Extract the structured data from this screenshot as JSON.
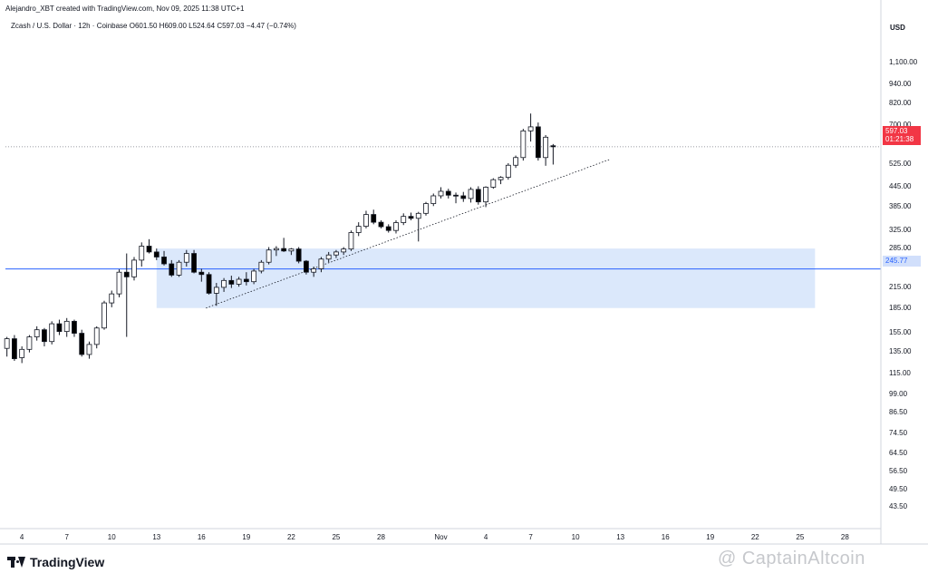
{
  "header": {
    "author_line": "Alejandro_XBT created with TradingView.com, Nov 09, 2025 11:38 UTC+1"
  },
  "legend": {
    "symbol": "Zcash / U.S. Dollar · 12h · Coinbase",
    "open": "O601.50",
    "high": "H609.00",
    "low": "L524.64",
    "close": "C597.03",
    "change": "−4.47 (−0.74%)"
  },
  "footer": {
    "brand": "TradingView",
    "watermark": "@ CaptainAltcoin"
  },
  "colors": {
    "candle_up_fill": "#ffffff",
    "candle_down_fill": "#000000",
    "candle_border": "#131722",
    "zone_fill": "#dbe8fb",
    "level_line": "#2962ff",
    "trendline": "#131722",
    "last_price_line": "#787b86",
    "last_price_tag": "#f23645"
  },
  "chart_data": {
    "type": "candlestick",
    "title": "",
    "y_axis": {
      "currency": "USD",
      "scale": "log",
      "ticks": [
        "1,100.00",
        "940.00",
        "820.00",
        "700.00",
        "525.00",
        "445.00",
        "385.00",
        "325.00",
        "285.00",
        "215.00",
        "185.00",
        "155.00",
        "135.00",
        "115.00",
        "99.00",
        "86.50",
        "74.50",
        "64.50",
        "56.50",
        "49.50",
        "43.50"
      ],
      "tick_values": [
        1100,
        940,
        820,
        700,
        525,
        445,
        385,
        325,
        285,
        215,
        185,
        155,
        135,
        115,
        99,
        86.5,
        74.5,
        64.5,
        56.5,
        49.5,
        43.5
      ],
      "range": [
        38,
        1350
      ]
    },
    "x_axis": {
      "ticks": [
        "4",
        "7",
        "10",
        "13",
        "16",
        "19",
        "22",
        "25",
        "28",
        "Nov",
        "4",
        "7",
        "10",
        "13",
        "16",
        "19",
        "22",
        "25",
        "28"
      ],
      "tick_days": [
        4,
        7,
        10,
        13,
        16,
        19,
        22,
        25,
        28,
        32,
        35,
        38,
        41,
        44,
        47,
        50,
        53,
        56,
        59
      ],
      "day_unit": "days from Oct 1, 2025",
      "range": [
        2.9,
        61.4
      ]
    },
    "last_price": {
      "value": 597.03,
      "label": "597.03",
      "countdown": "01:21:38"
    },
    "horizontal_level": {
      "value": 245.77,
      "label": "245.77"
    },
    "demand_zone": {
      "from_day": 13,
      "to_day": 57,
      "low": 185,
      "high": 285
    },
    "trendline": {
      "from": {
        "day": 16.3,
        "price": 185
      },
      "to": {
        "day": 43.3,
        "price": 545
      }
    },
    "candles": [
      {
        "day": 3.0,
        "o": 138,
        "h": 150,
        "l": 130,
        "c": 148
      },
      {
        "day": 3.5,
        "o": 148,
        "h": 152,
        "l": 126,
        "c": 128
      },
      {
        "day": 4.0,
        "o": 129,
        "h": 140,
        "l": 124,
        "c": 137
      },
      {
        "day": 4.5,
        "o": 137,
        "h": 152,
        "l": 134,
        "c": 150
      },
      {
        "day": 5.0,
        "o": 150,
        "h": 162,
        "l": 146,
        "c": 158
      },
      {
        "day": 5.5,
        "o": 158,
        "h": 160,
        "l": 140,
        "c": 145
      },
      {
        "day": 6.0,
        "o": 145,
        "h": 168,
        "l": 142,
        "c": 165
      },
      {
        "day": 6.5,
        "o": 165,
        "h": 170,
        "l": 152,
        "c": 156
      },
      {
        "day": 7.0,
        "o": 156,
        "h": 172,
        "l": 150,
        "c": 168
      },
      {
        "day": 7.5,
        "o": 168,
        "h": 170,
        "l": 150,
        "c": 154
      },
      {
        "day": 8.0,
        "o": 154,
        "h": 158,
        "l": 130,
        "c": 132
      },
      {
        "day": 8.5,
        "o": 132,
        "h": 145,
        "l": 128,
        "c": 142
      },
      {
        "day": 9.0,
        "o": 142,
        "h": 162,
        "l": 138,
        "c": 160
      },
      {
        "day": 9.5,
        "o": 160,
        "h": 195,
        "l": 158,
        "c": 192
      },
      {
        "day": 10.0,
        "o": 192,
        "h": 210,
        "l": 186,
        "c": 205
      },
      {
        "day": 10.5,
        "o": 205,
        "h": 245,
        "l": 200,
        "c": 240
      },
      {
        "day": 11.0,
        "o": 240,
        "h": 275,
        "l": 150,
        "c": 232
      },
      {
        "day": 11.5,
        "o": 232,
        "h": 268,
        "l": 226,
        "c": 262
      },
      {
        "day": 12.0,
        "o": 262,
        "h": 298,
        "l": 250,
        "c": 290
      },
      {
        "day": 12.5,
        "o": 290,
        "h": 305,
        "l": 275,
        "c": 278
      },
      {
        "day": 13.0,
        "o": 278,
        "h": 285,
        "l": 262,
        "c": 268
      },
      {
        "day": 13.5,
        "o": 268,
        "h": 280,
        "l": 252,
        "c": 255
      },
      {
        "day": 14.0,
        "o": 255,
        "h": 262,
        "l": 232,
        "c": 235
      },
      {
        "day": 14.5,
        "o": 235,
        "h": 262,
        "l": 232,
        "c": 258
      },
      {
        "day": 15.0,
        "o": 258,
        "h": 282,
        "l": 250,
        "c": 275
      },
      {
        "day": 15.5,
        "o": 275,
        "h": 282,
        "l": 238,
        "c": 240
      },
      {
        "day": 16.0,
        "o": 240,
        "h": 246,
        "l": 224,
        "c": 236
      },
      {
        "day": 16.5,
        "o": 236,
        "h": 240,
        "l": 204,
        "c": 206
      },
      {
        "day": 17.0,
        "o": 206,
        "h": 222,
        "l": 188,
        "c": 215
      },
      {
        "day": 17.5,
        "o": 215,
        "h": 230,
        "l": 208,
        "c": 226
      },
      {
        "day": 18.0,
        "o": 226,
        "h": 234,
        "l": 214,
        "c": 220
      },
      {
        "day": 18.5,
        "o": 220,
        "h": 232,
        "l": 216,
        "c": 228
      },
      {
        "day": 19.0,
        "o": 228,
        "h": 240,
        "l": 218,
        "c": 224
      },
      {
        "day": 19.5,
        "o": 224,
        "h": 246,
        "l": 220,
        "c": 242
      },
      {
        "day": 20.0,
        "o": 242,
        "h": 262,
        "l": 238,
        "c": 258
      },
      {
        "day": 20.5,
        "o": 258,
        "h": 288,
        "l": 254,
        "c": 282
      },
      {
        "day": 21.0,
        "o": 282,
        "h": 290,
        "l": 270,
        "c": 285
      },
      {
        "day": 21.5,
        "o": 285,
        "h": 308,
        "l": 278,
        "c": 280
      },
      {
        "day": 22.0,
        "o": 280,
        "h": 286,
        "l": 272,
        "c": 284
      },
      {
        "day": 22.5,
        "o": 284,
        "h": 288,
        "l": 256,
        "c": 260
      },
      {
        "day": 23.0,
        "o": 260,
        "h": 262,
        "l": 236,
        "c": 240
      },
      {
        "day": 23.5,
        "o": 240,
        "h": 250,
        "l": 232,
        "c": 246
      },
      {
        "day": 24.0,
        "o": 246,
        "h": 268,
        "l": 240,
        "c": 264
      },
      {
        "day": 24.5,
        "o": 264,
        "h": 278,
        "l": 258,
        "c": 272
      },
      {
        "day": 25.0,
        "o": 272,
        "h": 282,
        "l": 266,
        "c": 278
      },
      {
        "day": 25.5,
        "o": 278,
        "h": 288,
        "l": 272,
        "c": 284
      },
      {
        "day": 26.0,
        "o": 284,
        "h": 325,
        "l": 280,
        "c": 320
      },
      {
        "day": 26.5,
        "o": 320,
        "h": 345,
        "l": 312,
        "c": 335
      },
      {
        "day": 27.0,
        "o": 335,
        "h": 375,
        "l": 330,
        "c": 365
      },
      {
        "day": 27.5,
        "o": 365,
        "h": 378,
        "l": 340,
        "c": 345
      },
      {
        "day": 28.0,
        "o": 345,
        "h": 350,
        "l": 330,
        "c": 334
      },
      {
        "day": 28.5,
        "o": 334,
        "h": 340,
        "l": 320,
        "c": 325
      },
      {
        "day": 29.0,
        "o": 325,
        "h": 350,
        "l": 318,
        "c": 344
      },
      {
        "day": 29.5,
        "o": 344,
        "h": 368,
        "l": 338,
        "c": 360
      },
      {
        "day": 30.0,
        "o": 360,
        "h": 370,
        "l": 350,
        "c": 355
      },
      {
        "day": 30.5,
        "o": 355,
        "h": 372,
        "l": 300,
        "c": 368
      },
      {
        "day": 31.0,
        "o": 368,
        "h": 400,
        "l": 362,
        "c": 395
      },
      {
        "day": 31.5,
        "o": 395,
        "h": 425,
        "l": 388,
        "c": 418
      },
      {
        "day": 32.0,
        "o": 418,
        "h": 445,
        "l": 410,
        "c": 432
      },
      {
        "day": 32.5,
        "o": 432,
        "h": 440,
        "l": 410,
        "c": 420
      },
      {
        "day": 33.0,
        "o": 420,
        "h": 428,
        "l": 396,
        "c": 418
      },
      {
        "day": 33.5,
        "o": 418,
        "h": 430,
        "l": 400,
        "c": 410
      },
      {
        "day": 34.0,
        "o": 410,
        "h": 445,
        "l": 398,
        "c": 438
      },
      {
        "day": 34.5,
        "o": 438,
        "h": 448,
        "l": 392,
        "c": 400
      },
      {
        "day": 35.0,
        "o": 400,
        "h": 448,
        "l": 385,
        "c": 445
      },
      {
        "day": 35.5,
        "o": 445,
        "h": 475,
        "l": 440,
        "c": 470
      },
      {
        "day": 36.0,
        "o": 470,
        "h": 482,
        "l": 455,
        "c": 478
      },
      {
        "day": 36.5,
        "o": 478,
        "h": 530,
        "l": 470,
        "c": 522
      },
      {
        "day": 37.0,
        "o": 522,
        "h": 560,
        "l": 512,
        "c": 552
      },
      {
        "day": 37.5,
        "o": 552,
        "h": 680,
        "l": 540,
        "c": 670
      },
      {
        "day": 38.0,
        "o": 670,
        "h": 760,
        "l": 620,
        "c": 690
      },
      {
        "day": 38.5,
        "o": 690,
        "h": 712,
        "l": 540,
        "c": 552
      },
      {
        "day": 39.0,
        "o": 552,
        "h": 650,
        "l": 520,
        "c": 640
      },
      {
        "day": 39.5,
        "o": 601.5,
        "h": 609,
        "l": 524.64,
        "c": 597.03
      }
    ]
  }
}
